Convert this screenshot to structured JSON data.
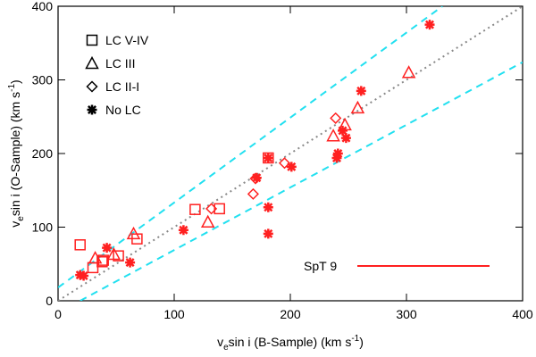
{
  "chart_data": {
    "type": "scatter",
    "xlabel": {
      "pre": "v",
      "sub": "e",
      "mid": "sin i (B-Sample) (km s",
      "sup": "-1",
      "post": ")"
    },
    "ylabel": {
      "pre": "v",
      "sub": "e",
      "mid": "sin i (O-Sample) (km s",
      "sup": "-1",
      "post": ")"
    },
    "xlim": [
      0,
      400
    ],
    "ylim": [
      0,
      400
    ],
    "xticks": [
      0,
      100,
      200,
      300,
      400
    ],
    "yticks": [
      0,
      100,
      200,
      300,
      400
    ],
    "legend": "upper left",
    "annotation": "SpT 9",
    "series": [
      {
        "name": "LC V-IV",
        "marker": "square",
        "color": "#ff2020",
        "x": [
          19,
          30,
          38,
          39,
          52,
          68,
          118,
          139,
          181
        ],
        "values": [
          76,
          45,
          53,
          55,
          61,
          84,
          124,
          125,
          194
        ]
      },
      {
        "name": "LC III",
        "marker": "triangle",
        "color": "#ff2020",
        "x": [
          32,
          48,
          65,
          129,
          237,
          247,
          258,
          302
        ],
        "values": [
          58,
          63,
          91,
          107,
          224,
          239,
          262,
          310
        ]
      },
      {
        "name": "LC II-I",
        "marker": "diamond",
        "color": "#ff2020",
        "x": [
          132,
          168,
          170,
          195,
          239
        ],
        "values": [
          125,
          145,
          166,
          187,
          248
        ]
      },
      {
        "name": "No LC",
        "marker": "asterisk",
        "color": "#ff2020",
        "x": [
          19,
          22,
          42,
          62,
          108,
          171,
          181,
          181,
          181,
          201,
          240,
          241,
          245,
          248,
          261,
          320
        ],
        "values": [
          35,
          34,
          72,
          52,
          96,
          167,
          194,
          127,
          91,
          182,
          194,
          200,
          231,
          221,
          285,
          375
        ]
      }
    ],
    "lines": [
      {
        "style": "dotted",
        "color": "#888888",
        "x": [
          0,
          400
        ],
        "values": [
          0,
          400
        ]
      },
      {
        "style": "dashed",
        "color": "#22e0f0",
        "x": [
          0,
          331
        ],
        "values": [
          18,
          400
        ]
      },
      {
        "style": "dashed",
        "color": "#22e0f0",
        "x": [
          19,
          400
        ],
        "values": [
          0,
          324
        ]
      }
    ]
  }
}
